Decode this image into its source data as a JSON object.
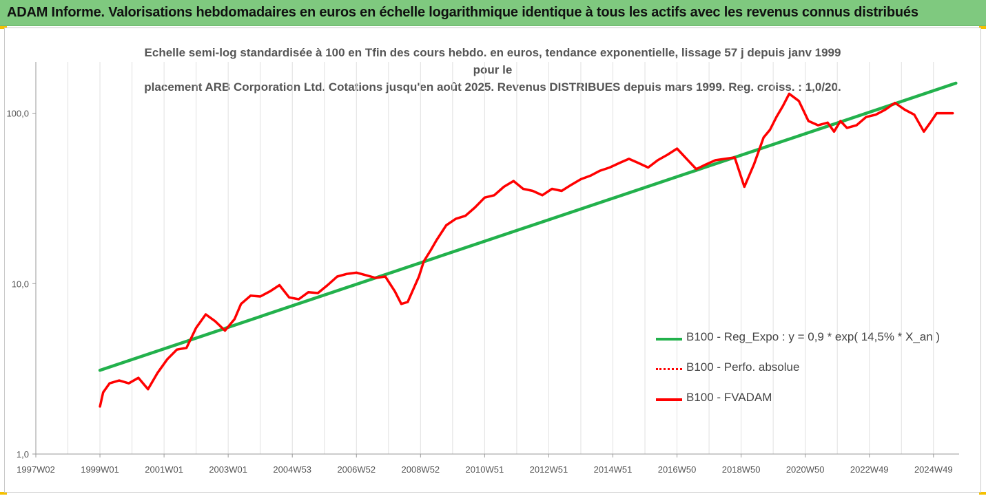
{
  "banner": {
    "title": "ADAM Informe. Valorisations hebdomadaires en euros en échelle logarithmique identique à tous les actifs avec les revenus connus distribués"
  },
  "chart_data": {
    "type": "line",
    "subtitle_line1": "Echelle semi-log standardisée à 100 en Tfin des cours hebdo. en euros, tendance exponentielle, lissage 57 j depuis janv 1999 pour le",
    "subtitle_line2": "placement ARB Corporation Ltd. Cotations jusqu'en août 2025. Revenus DISTRIBUES depuis mars 1999. Reg. croiss. : 1,0/20.",
    "y_scale": "log",
    "ylim": [
      1,
      200
    ],
    "y_ticks": [
      {
        "value": 1,
        "label": "1,0"
      },
      {
        "value": 10,
        "label": "10,0"
      },
      {
        "value": 100,
        "label": "100,0"
      }
    ],
    "x_unit": "year",
    "xlim": [
      1997.0,
      2025.8
    ],
    "x_ticks": [
      {
        "value": 1997.0,
        "label": "1997W02"
      },
      {
        "value": 1999.0,
        "label": "1999W01"
      },
      {
        "value": 2001.0,
        "label": "2001W01"
      },
      {
        "value": 2003.0,
        "label": "2003W01"
      },
      {
        "value": 2005.0,
        "label": "2004W53"
      },
      {
        "value": 2007.0,
        "label": "2006W52"
      },
      {
        "value": 2009.0,
        "label": "2008W52"
      },
      {
        "value": 2011.0,
        "label": "2010W51"
      },
      {
        "value": 2013.0,
        "label": "2012W51"
      },
      {
        "value": 2015.0,
        "label": "2014W51"
      },
      {
        "value": 2017.0,
        "label": "2016W50"
      },
      {
        "value": 2019.0,
        "label": "2018W50"
      },
      {
        "value": 2021.0,
        "label": "2020W50"
      },
      {
        "value": 2023.0,
        "label": "2022W49"
      },
      {
        "value": 2025.0,
        "label": "2024W49"
      }
    ],
    "grid": "vertical",
    "legend_position": "bottom-right",
    "series": [
      {
        "name": "B100 - Reg_Expo : y = 0,9 * exp( 14,5% *  X_an )",
        "color": "#22b14c",
        "style": "solid",
        "x": [
          1999.0,
          2025.7
        ],
        "y": [
          3.1,
          150
        ]
      },
      {
        "name": "B100 - Perfo. absolue",
        "color": "#ff0000",
        "style": "dotted",
        "x": [],
        "y": []
      },
      {
        "name": "B100 - FVADAM",
        "color": "#ff0000",
        "style": "solid",
        "x": [
          1999.0,
          1999.1,
          1999.3,
          1999.6,
          1999.9,
          2000.2,
          2000.5,
          2000.8,
          2001.1,
          2001.4,
          2001.7,
          2002.0,
          2002.3,
          2002.6,
          2002.9,
          2003.2,
          2003.4,
          2003.7,
          2004.0,
          2004.3,
          2004.6,
          2004.9,
          2005.2,
          2005.5,
          2005.8,
          2006.1,
          2006.4,
          2006.7,
          2007.0,
          2007.3,
          2007.6,
          2007.9,
          2008.2,
          2008.4,
          2008.6,
          2008.8,
          2008.95,
          2009.1,
          2009.3,
          2009.5,
          2009.8,
          2010.1,
          2010.4,
          2010.7,
          2011.0,
          2011.3,
          2011.6,
          2011.9,
          2012.2,
          2012.5,
          2012.8,
          2013.1,
          2013.4,
          2013.7,
          2014.0,
          2014.3,
          2014.6,
          2014.9,
          2015.2,
          2015.5,
          2015.8,
          2016.1,
          2016.4,
          2016.7,
          2017.0,
          2017.3,
          2017.6,
          2017.9,
          2018.2,
          2018.5,
          2018.8,
          2019.1,
          2019.4,
          2019.7,
          2019.9,
          2020.1,
          2020.3,
          2020.5,
          2020.8,
          2021.1,
          2021.4,
          2021.7,
          2021.9,
          2022.1,
          2022.3,
          2022.6,
          2022.9,
          2023.2,
          2023.5,
          2023.8,
          2024.1,
          2024.4,
          2024.7,
          2024.9,
          2025.1,
          2025.3,
          2025.6
        ],
        "y": [
          1.9,
          2.3,
          2.6,
          2.7,
          2.6,
          2.8,
          2.4,
          3.0,
          3.6,
          4.1,
          4.2,
          5.5,
          6.6,
          6.0,
          5.3,
          6.2,
          7.6,
          8.5,
          8.4,
          9.0,
          9.8,
          8.3,
          8.1,
          8.9,
          8.8,
          9.8,
          11.0,
          11.4,
          11.6,
          11.2,
          10.8,
          11.0,
          9.0,
          7.6,
          7.8,
          9.5,
          11.0,
          13.5,
          15.5,
          18.0,
          22.0,
          24.0,
          25.0,
          28.0,
          32.0,
          33.0,
          37.0,
          40.0,
          36.0,
          35.0,
          33.0,
          36.0,
          35.0,
          38.0,
          41.0,
          43.0,
          46.0,
          48.0,
          51.0,
          54.0,
          51.0,
          48.0,
          53.0,
          57.0,
          62.0,
          54.0,
          47.0,
          50.0,
          53.0,
          54.0,
          55.0,
          37.0,
          50.0,
          72.0,
          80.0,
          95.0,
          110.0,
          130.0,
          118.0,
          90.0,
          85.0,
          88.0,
          78.0,
          90.0,
          82.0,
          85.0,
          95.0,
          98.0,
          105.0,
          115.0,
          105.0,
          98.0,
          78.0,
          88.0,
          100.0,
          100.0,
          100.0
        ]
      }
    ]
  }
}
